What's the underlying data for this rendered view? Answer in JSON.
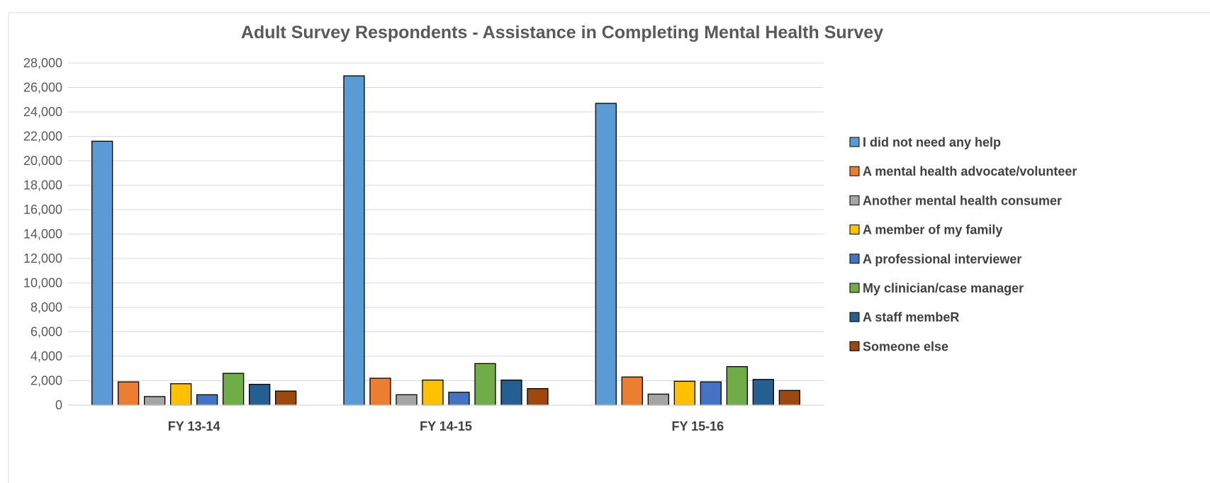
{
  "chart_data": {
    "type": "bar",
    "title": "Adult Survey Respondents - Assistance in Completing Mental Health Survey",
    "categories": [
      "FY 13-14",
      "FY 14-15",
      "FY 15-16"
    ],
    "series": [
      {
        "name": "I did not need any help",
        "color": "#5b9bd5",
        "values": [
          21600,
          26950,
          24700
        ]
      },
      {
        "name": "A mental health advocate/volunteer",
        "color": "#ed7d31",
        "values": [
          1900,
          2200,
          2300
        ]
      },
      {
        "name": "Another mental health consumer",
        "color": "#a5a5a5",
        "values": [
          700,
          850,
          900
        ]
      },
      {
        "name": "A member of my family",
        "color": "#ffc000",
        "values": [
          1750,
          2050,
          1950
        ]
      },
      {
        "name": "A professional interviewer",
        "color": "#4472c4",
        "values": [
          850,
          1050,
          1900
        ]
      },
      {
        "name": "My clinician/case manager",
        "color": "#70ad47",
        "values": [
          2600,
          3400,
          3150
        ]
      },
      {
        "name": "A staff membeR",
        "color": "#255e91",
        "values": [
          1700,
          2050,
          2100
        ]
      },
      {
        "name": "Someone else",
        "color": "#9e480e",
        "values": [
          1150,
          1350,
          1200
        ]
      }
    ],
    "ylim": [
      0,
      28000
    ],
    "yticks": [
      "0",
      "2,000",
      "4,000",
      "6,000",
      "8,000",
      "10,000",
      "12,000",
      "14,000",
      "16,000",
      "18,000",
      "20,000",
      "22,000",
      "24,000",
      "26,000",
      "28,000"
    ],
    "grid": true,
    "legend_position": "right"
  }
}
